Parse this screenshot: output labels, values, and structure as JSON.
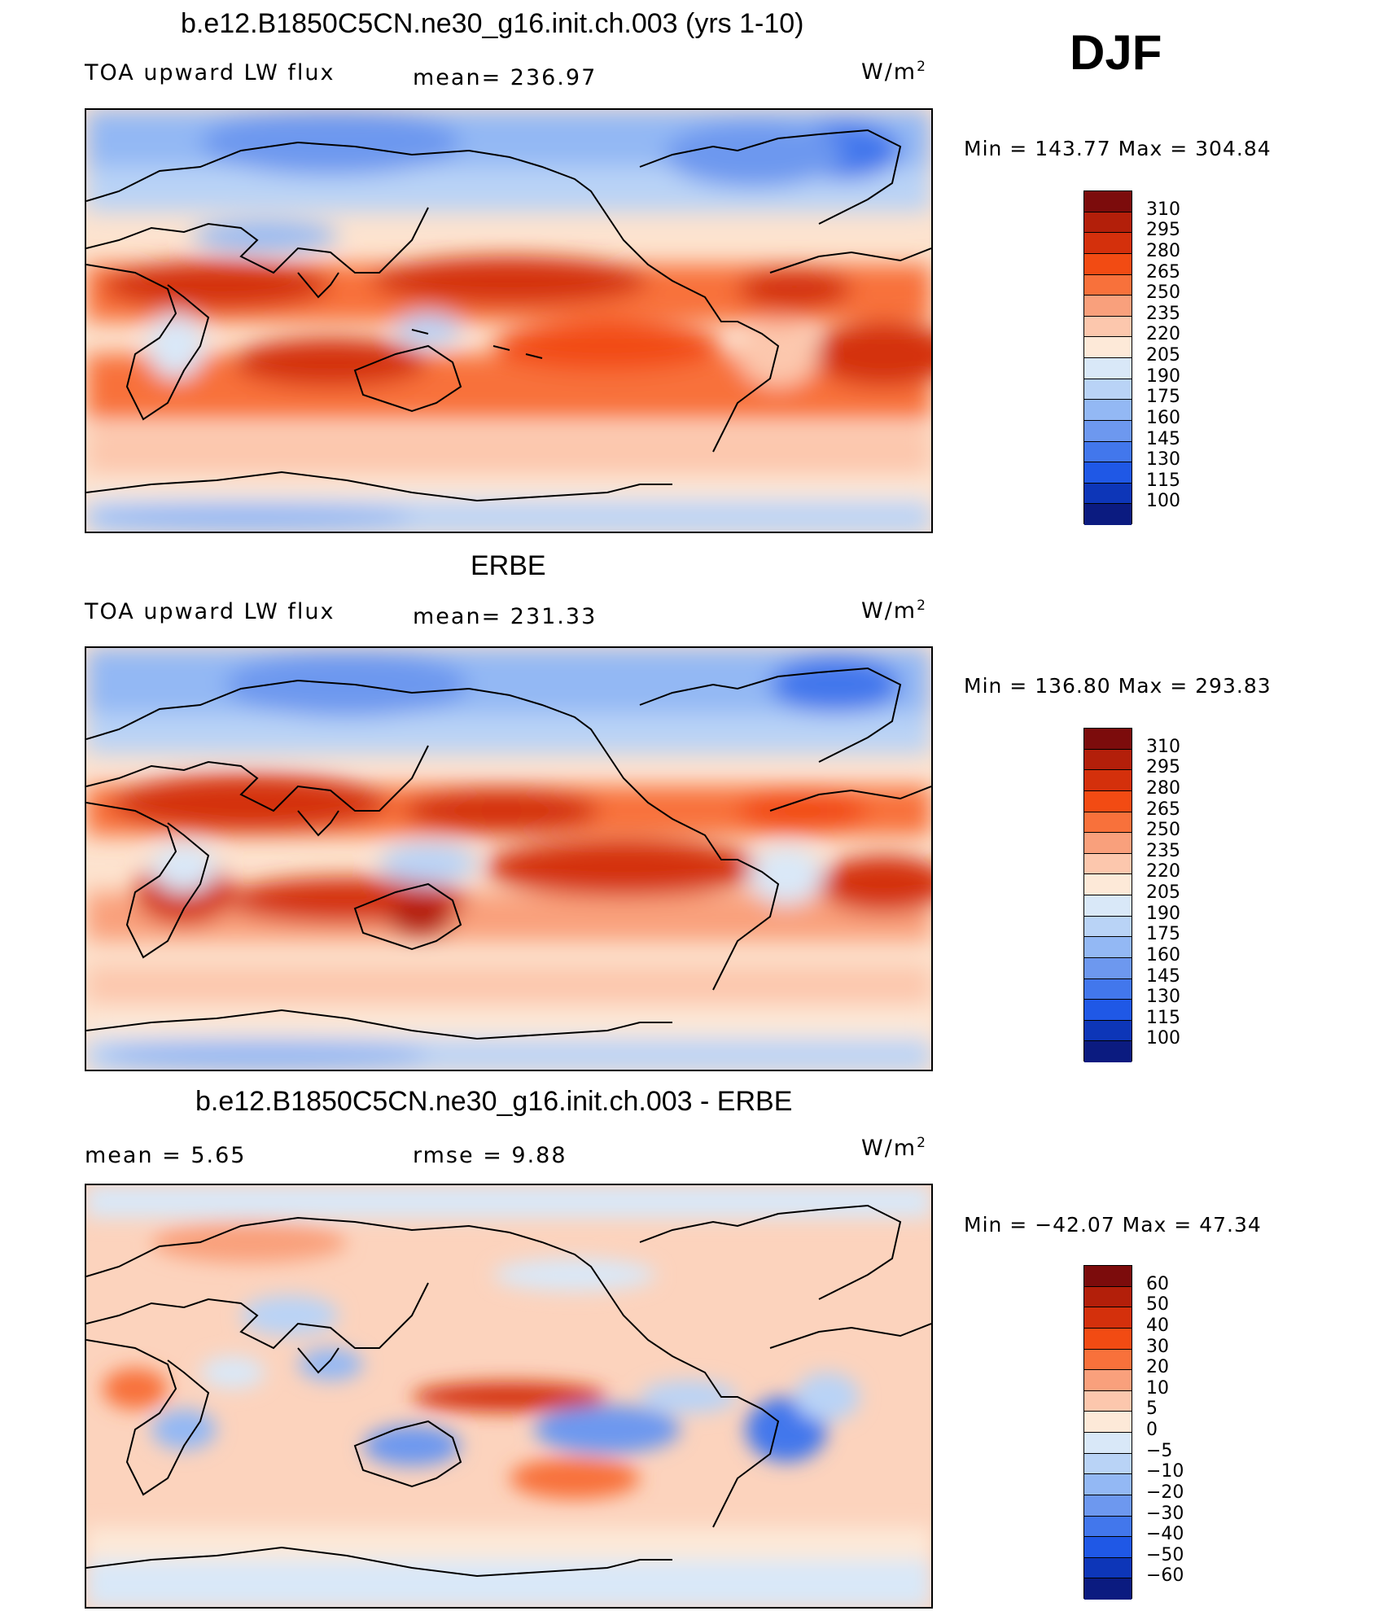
{
  "djf_label": "DJF",
  "unit_label": "W/m",
  "unit_exp": "2",
  "panels": [
    {
      "title": "b.e12.B1850C5CN.ne30_g16.init.ch.003 (yrs 1-10)",
      "left_label": "TOA upward LW flux",
      "mean_label": "mean= 236.97",
      "minmax": "Min  =  143.77  Max  =  304.84"
    },
    {
      "title": "ERBE",
      "left_label": "TOA upward LW flux",
      "mean_label": "mean= 231.33",
      "minmax": "Min  =  136.80  Max  =  293.83"
    },
    {
      "title": "b.e12.B1850C5CN.ne30_g16.init.ch.003 - ERBE",
      "left_label": "mean  =     5.65",
      "mean_label": "rmse  =     9.88",
      "minmax": "Min  =  −42.07  Max  =    47.34"
    }
  ],
  "chart_data": [
    {
      "type": "heatmap",
      "title": "b.e12.B1850C5CN.ne30_g16.init.ch.003 (yrs 1-10)",
      "variable": "TOA upward LW flux",
      "units": "W/m2",
      "mean": 236.97,
      "min": 143.77,
      "max": 304.84,
      "levels": [
        "310",
        "295",
        "280",
        "265",
        "250",
        "235",
        "220",
        "205",
        "190",
        "175",
        "160",
        "145",
        "130",
        "115",
        "100"
      ],
      "colors": [
        "#7c0c0c",
        "#b31f0a",
        "#d4300c",
        "#f24b13",
        "#f8713b",
        "#f9a07c",
        "#fcc7ad",
        "#fde9d8",
        "#d9e8f8",
        "#b9d3f6",
        "#93b8f4",
        "#6d98ef",
        "#4277ec",
        "#1f58e6",
        "#0d36b8",
        "#0b1b80"
      ]
    },
    {
      "type": "heatmap",
      "title": "ERBE",
      "variable": "TOA upward LW flux",
      "units": "W/m2",
      "mean": 231.33,
      "min": 136.8,
      "max": 293.83,
      "levels": [
        "310",
        "295",
        "280",
        "265",
        "250",
        "235",
        "220",
        "205",
        "190",
        "175",
        "160",
        "145",
        "130",
        "115",
        "100"
      ],
      "colors": [
        "#7c0c0c",
        "#b31f0a",
        "#d4300c",
        "#f24b13",
        "#f8713b",
        "#f9a07c",
        "#fcc7ad",
        "#fde9d8",
        "#d9e8f8",
        "#b9d3f6",
        "#93b8f4",
        "#6d98ef",
        "#4277ec",
        "#1f58e6",
        "#0d36b8",
        "#0b1b80"
      ]
    },
    {
      "type": "heatmap",
      "title": "b.e12.B1850C5CN.ne30_g16.init.ch.003 - ERBE",
      "units": "W/m2",
      "mean": 5.65,
      "rmse": 9.88,
      "min": -42.07,
      "max": 47.34,
      "levels": [
        "60",
        "50",
        "40",
        "30",
        "20",
        "10",
        "5",
        "0",
        "−5",
        "−10",
        "−20",
        "−30",
        "−40",
        "−50",
        "−60"
      ],
      "colors": [
        "#7c0c0c",
        "#b31f0a",
        "#d4300c",
        "#f24b13",
        "#f8713b",
        "#f9a07c",
        "#fcc7ad",
        "#fde9d8",
        "#d9e8f8",
        "#b9d3f6",
        "#93b8f4",
        "#6d98ef",
        "#4277ec",
        "#1f58e6",
        "#0d36b8",
        "#0b1b80"
      ]
    }
  ]
}
